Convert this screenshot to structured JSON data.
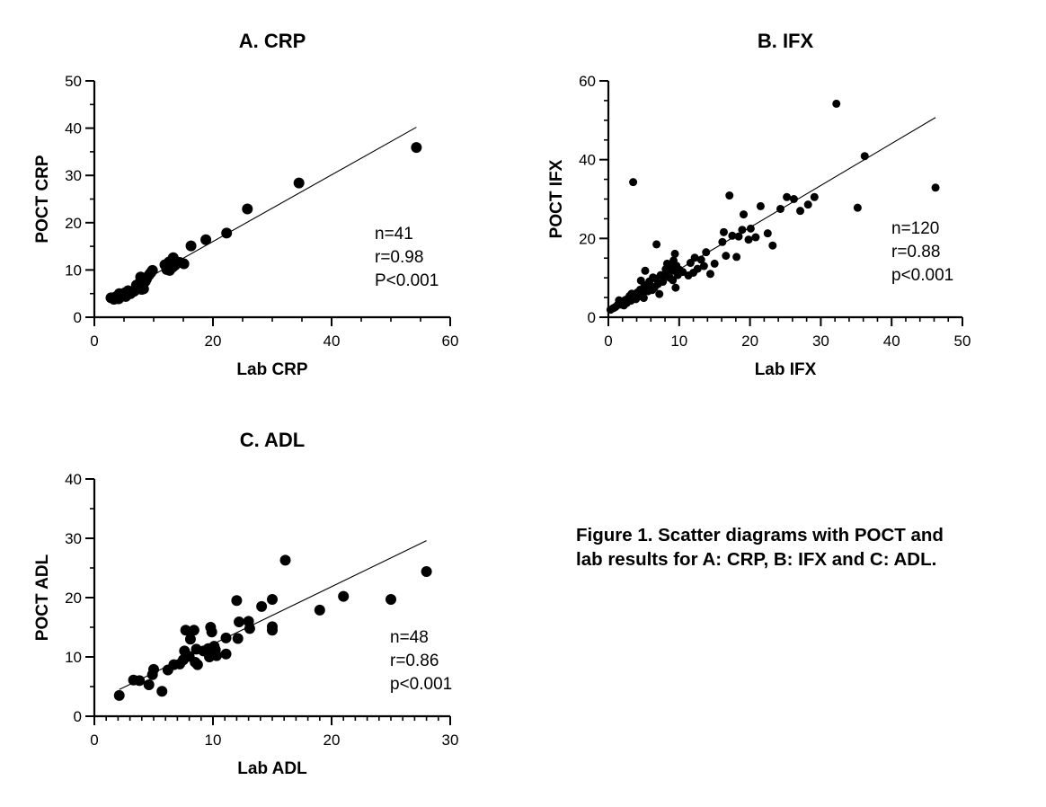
{
  "figure": {
    "caption_lines": [
      "Figure 1. Scatter diagrams with POCT and",
      "lab results for A: CRP, B: IFX and C: ADL."
    ]
  },
  "chart_data": [
    {
      "type": "scatter",
      "title": "A. CRP",
      "xlabel": "Lab CRP",
      "ylabel": "POCT CRP",
      "xlim": [
        0,
        60
      ],
      "ylim": [
        0,
        50
      ],
      "xticks": [
        0,
        20,
        40,
        60
      ],
      "yticks": [
        0,
        10,
        20,
        30,
        40,
        50
      ],
      "x_minor_step": 5,
      "y_minor_step": 5,
      "grid": false,
      "stats": [
        "n=41",
        "r=0.98",
        "P<0.001"
      ],
      "regression_line": {
        "x": [
          2.8,
          54.3
        ],
        "y": [
          3.9,
          40.2
        ]
      },
      "points": [
        {
          "x": 2.8,
          "y": 4.1
        },
        {
          "x": 3.3,
          "y": 3.8
        },
        {
          "x": 3.6,
          "y": 4.3
        },
        {
          "x": 4.1,
          "y": 3.9
        },
        {
          "x": 4.2,
          "y": 5.0
        },
        {
          "x": 4.6,
          "y": 4.6
        },
        {
          "x": 5.2,
          "y": 5.2
        },
        {
          "x": 5.3,
          "y": 4.4
        },
        {
          "x": 5.7,
          "y": 5.6
        },
        {
          "x": 6.1,
          "y": 5.0
        },
        {
          "x": 6.7,
          "y": 5.5
        },
        {
          "x": 7.0,
          "y": 5.8
        },
        {
          "x": 7.1,
          "y": 6.8
        },
        {
          "x": 7.4,
          "y": 6.4
        },
        {
          "x": 7.7,
          "y": 7.4
        },
        {
          "x": 7.8,
          "y": 8.5
        },
        {
          "x": 8.0,
          "y": 5.9
        },
        {
          "x": 8.1,
          "y": 6.8
        },
        {
          "x": 8.3,
          "y": 6.0
        },
        {
          "x": 8.6,
          "y": 7.6
        },
        {
          "x": 8.8,
          "y": 8.1
        },
        {
          "x": 9.2,
          "y": 8.9
        },
        {
          "x": 9.5,
          "y": 9.4
        },
        {
          "x": 9.8,
          "y": 9.9
        },
        {
          "x": 11.9,
          "y": 11.1
        },
        {
          "x": 12.2,
          "y": 10.1
        },
        {
          "x": 12.6,
          "y": 11.7
        },
        {
          "x": 12.7,
          "y": 9.9
        },
        {
          "x": 13.2,
          "y": 10.6
        },
        {
          "x": 13.3,
          "y": 12.6
        },
        {
          "x": 13.6,
          "y": 11.0
        },
        {
          "x": 14.4,
          "y": 11.6
        },
        {
          "x": 15.1,
          "y": 11.3
        },
        {
          "x": 16.3,
          "y": 15.1
        },
        {
          "x": 18.8,
          "y": 16.4
        },
        {
          "x": 22.3,
          "y": 17.8
        },
        {
          "x": 25.8,
          "y": 22.9
        },
        {
          "x": 34.5,
          "y": 28.4
        },
        {
          "x": 54.3,
          "y": 35.9
        }
      ]
    },
    {
      "type": "scatter",
      "title": "B. IFX",
      "xlabel": "Lab IFX",
      "ylabel": "POCT IFX",
      "xlim": [
        0,
        50
      ],
      "ylim": [
        0,
        60
      ],
      "xticks": [
        0,
        10,
        20,
        30,
        40,
        50
      ],
      "yticks": [
        0,
        20,
        40,
        60
      ],
      "x_minor_step": 2,
      "y_minor_step": 5,
      "grid": false,
      "stats": [
        "n=120",
        "r=0.88",
        "p<0.001"
      ],
      "regression_line": {
        "x": [
          0,
          46.2
        ],
        "y": [
          1.5,
          50.7
        ]
      },
      "points": [
        {
          "x": 0.3,
          "y": 1.9
        },
        {
          "x": 0.7,
          "y": 2.3
        },
        {
          "x": 1.0,
          "y": 2.6
        },
        {
          "x": 1.3,
          "y": 3.1
        },
        {
          "x": 1.5,
          "y": 4.3
        },
        {
          "x": 1.8,
          "y": 3.2
        },
        {
          "x": 2.0,
          "y": 3.8
        },
        {
          "x": 2.2,
          "y": 3.0
        },
        {
          "x": 2.4,
          "y": 4.4
        },
        {
          "x": 2.6,
          "y": 3.6
        },
        {
          "x": 2.8,
          "y": 4.8
        },
        {
          "x": 3.0,
          "y": 5.4
        },
        {
          "x": 3.2,
          "y": 4.2
        },
        {
          "x": 3.3,
          "y": 6.0
        },
        {
          "x": 3.5,
          "y": 34.3
        },
        {
          "x": 3.6,
          "y": 5.0
        },
        {
          "x": 3.9,
          "y": 4.6
        },
        {
          "x": 4.1,
          "y": 6.3
        },
        {
          "x": 4.3,
          "y": 5.3
        },
        {
          "x": 4.5,
          "y": 7.0
        },
        {
          "x": 4.6,
          "y": 9.3
        },
        {
          "x": 4.8,
          "y": 6.1
        },
        {
          "x": 5.0,
          "y": 4.9
        },
        {
          "x": 5.1,
          "y": 8.1
        },
        {
          "x": 5.2,
          "y": 11.8
        },
        {
          "x": 5.4,
          "y": 7.3
        },
        {
          "x": 5.6,
          "y": 6.6
        },
        {
          "x": 5.8,
          "y": 9.1
        },
        {
          "x": 6.0,
          "y": 8.0
        },
        {
          "x": 6.2,
          "y": 6.9
        },
        {
          "x": 6.3,
          "y": 10.1
        },
        {
          "x": 6.5,
          "y": 7.5
        },
        {
          "x": 6.7,
          "y": 9.8
        },
        {
          "x": 6.8,
          "y": 18.5
        },
        {
          "x": 7.0,
          "y": 8.4
        },
        {
          "x": 7.2,
          "y": 5.9
        },
        {
          "x": 7.4,
          "y": 10.7
        },
        {
          "x": 7.7,
          "y": 9.0
        },
        {
          "x": 7.9,
          "y": 10.3
        },
        {
          "x": 8.1,
          "y": 12.2
        },
        {
          "x": 8.3,
          "y": 13.6
        },
        {
          "x": 8.5,
          "y": 11.0
        },
        {
          "x": 8.7,
          "y": 10.0
        },
        {
          "x": 8.9,
          "y": 12.6
        },
        {
          "x": 9.1,
          "y": 9.4
        },
        {
          "x": 9.2,
          "y": 14.4
        },
        {
          "x": 9.3,
          "y": 11.8
        },
        {
          "x": 9.4,
          "y": 16.1
        },
        {
          "x": 9.5,
          "y": 7.5
        },
        {
          "x": 9.6,
          "y": 13.1
        },
        {
          "x": 9.8,
          "y": 10.7
        },
        {
          "x": 10.0,
          "y": 12.1
        },
        {
          "x": 10.5,
          "y": 11.5
        },
        {
          "x": 11.3,
          "y": 10.6
        },
        {
          "x": 11.6,
          "y": 13.8
        },
        {
          "x": 12.0,
          "y": 11.3
        },
        {
          "x": 12.2,
          "y": 15.1
        },
        {
          "x": 12.6,
          "y": 12.3
        },
        {
          "x": 13.1,
          "y": 14.6
        },
        {
          "x": 13.5,
          "y": 13.0
        },
        {
          "x": 13.8,
          "y": 16.5
        },
        {
          "x": 14.4,
          "y": 11.0
        },
        {
          "x": 15.0,
          "y": 13.6
        },
        {
          "x": 16.1,
          "y": 19.1
        },
        {
          "x": 16.3,
          "y": 21.6
        },
        {
          "x": 16.6,
          "y": 15.6
        },
        {
          "x": 17.1,
          "y": 30.9
        },
        {
          "x": 17.5,
          "y": 20.7
        },
        {
          "x": 18.1,
          "y": 15.3
        },
        {
          "x": 18.4,
          "y": 20.5
        },
        {
          "x": 18.9,
          "y": 22.2
        },
        {
          "x": 19.1,
          "y": 26.1
        },
        {
          "x": 19.8,
          "y": 19.7
        },
        {
          "x": 20.1,
          "y": 22.5
        },
        {
          "x": 20.8,
          "y": 20.3
        },
        {
          "x": 21.5,
          "y": 28.2
        },
        {
          "x": 22.5,
          "y": 21.3
        },
        {
          "x": 23.2,
          "y": 18.2
        },
        {
          "x": 24.3,
          "y": 27.5
        },
        {
          "x": 25.2,
          "y": 30.5
        },
        {
          "x": 26.2,
          "y": 30.0
        },
        {
          "x": 27.1,
          "y": 27.0
        },
        {
          "x": 28.2,
          "y": 28.6
        },
        {
          "x": 29.1,
          "y": 30.5
        },
        {
          "x": 32.2,
          "y": 54.2
        },
        {
          "x": 35.2,
          "y": 27.8
        },
        {
          "x": 36.2,
          "y": 40.9
        },
        {
          "x": 46.2,
          "y": 32.9
        }
      ]
    },
    {
      "type": "scatter",
      "title": "C. ADL",
      "xlabel": "Lab ADL",
      "ylabel": "POCT ADL",
      "xlim": [
        0,
        30
      ],
      "ylim": [
        0,
        40
      ],
      "xticks": [
        0,
        10,
        20,
        30
      ],
      "yticks": [
        0,
        10,
        20,
        30,
        40
      ],
      "x_minor_step": 1,
      "y_minor_step": 5,
      "grid": false,
      "stats": [
        "n=48",
        "r=0.86",
        "p<0.001"
      ],
      "regression_line": {
        "x": [
          2.1,
          28.0
        ],
        "y": [
          4.5,
          29.6
        ]
      },
      "points": [
        {
          "x": 2.1,
          "y": 3.5
        },
        {
          "x": 3.3,
          "y": 6.1
        },
        {
          "x": 3.8,
          "y": 6.0
        },
        {
          "x": 4.6,
          "y": 5.3
        },
        {
          "x": 4.9,
          "y": 7.0
        },
        {
          "x": 5.0,
          "y": 7.9
        },
        {
          "x": 5.7,
          "y": 4.2
        },
        {
          "x": 6.2,
          "y": 7.8
        },
        {
          "x": 6.7,
          "y": 8.7
        },
        {
          "x": 7.2,
          "y": 8.8
        },
        {
          "x": 7.5,
          "y": 9.5
        },
        {
          "x": 7.6,
          "y": 11.0
        },
        {
          "x": 7.7,
          "y": 14.5
        },
        {
          "x": 8.0,
          "y": 10.1
        },
        {
          "x": 8.1,
          "y": 13.0
        },
        {
          "x": 8.4,
          "y": 14.5
        },
        {
          "x": 8.5,
          "y": 9.1
        },
        {
          "x": 8.6,
          "y": 11.3
        },
        {
          "x": 8.7,
          "y": 8.7
        },
        {
          "x": 9.2,
          "y": 11.0
        },
        {
          "x": 9.6,
          "y": 11.4
        },
        {
          "x": 9.7,
          "y": 10.0
        },
        {
          "x": 9.8,
          "y": 15.0
        },
        {
          "x": 9.9,
          "y": 14.2
        },
        {
          "x": 10.1,
          "y": 11.8
        },
        {
          "x": 10.2,
          "y": 11.2
        },
        {
          "x": 10.3,
          "y": 10.2
        },
        {
          "x": 11.1,
          "y": 10.5
        },
        {
          "x": 11.1,
          "y": 13.2
        },
        {
          "x": 12.0,
          "y": 19.5
        },
        {
          "x": 12.1,
          "y": 13.1
        },
        {
          "x": 12.2,
          "y": 15.9
        },
        {
          "x": 13.0,
          "y": 16.0
        },
        {
          "x": 13.1,
          "y": 14.8
        },
        {
          "x": 14.1,
          "y": 18.5
        },
        {
          "x": 15.0,
          "y": 19.7
        },
        {
          "x": 15.0,
          "y": 15.1
        },
        {
          "x": 15.0,
          "y": 14.5
        },
        {
          "x": 16.1,
          "y": 26.3
        },
        {
          "x": 19.0,
          "y": 17.9
        },
        {
          "x": 21.0,
          "y": 20.2
        },
        {
          "x": 25.0,
          "y": 19.7
        },
        {
          "x": 28.0,
          "y": 24.4
        }
      ]
    }
  ]
}
